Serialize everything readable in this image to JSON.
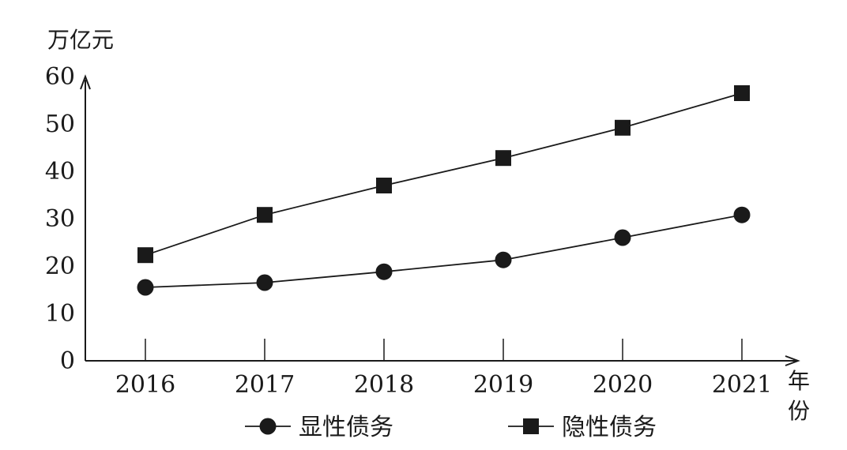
{
  "chart_data": {
    "type": "line",
    "title": "",
    "ylabel": "万亿元",
    "xlabel": "年份",
    "ylim": [
      0,
      60
    ],
    "yticks": [
      0,
      10,
      20,
      30,
      40,
      50,
      60
    ],
    "categories": [
      "2016",
      "2017",
      "2018",
      "2019",
      "2020",
      "2021"
    ],
    "grid": false,
    "legend_position": "bottom",
    "series": [
      {
        "name": "显性债务",
        "marker": "circle",
        "color": "#1a1a1a",
        "values": [
          15.5,
          16.5,
          18.8,
          21.3,
          26.0,
          30.8
        ]
      },
      {
        "name": "隐性债务",
        "marker": "square",
        "color": "#1a1a1a",
        "values": [
          22.3,
          30.8,
          37.0,
          42.8,
          49.2,
          56.5
        ]
      }
    ]
  }
}
